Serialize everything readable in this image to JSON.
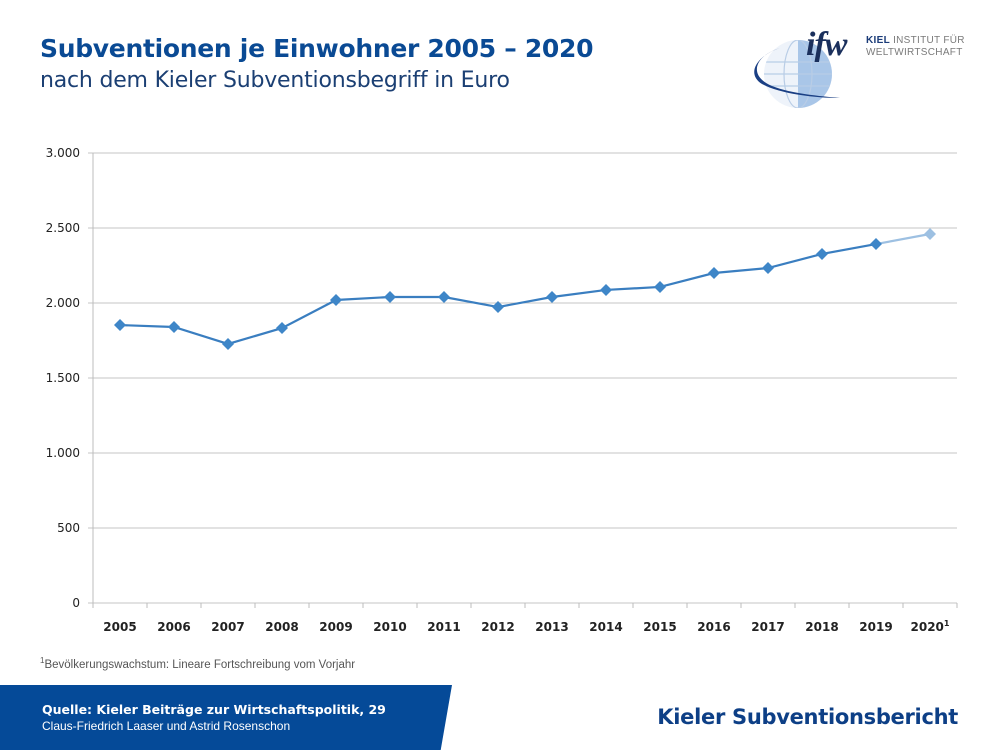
{
  "header": {
    "title": "Subventionen je Einwohner 2005 – 2020",
    "subtitle": "nach dem Kieler Subventionsbegriff in Euro"
  },
  "logo": {
    "mark": "ifw",
    "line1_bold": "KIEL",
    "line1_rest": " INSTITUT FÜR",
    "line2": "WELTWIRTSCHAFT",
    "icon": "globe-icon"
  },
  "colors": {
    "title": "#0a4a94",
    "series": "#3e86c8",
    "series_projected": "#9dc0e2",
    "footer_blue": "#054a98",
    "footer_gray": "#d3d3d3"
  },
  "chart_data": {
    "type": "line",
    "title": "Subventionen je Einwohner 2005 – 2020",
    "subtitle": "nach dem Kieler Subventionsbegriff in Euro",
    "xlabel": "",
    "ylabel": "",
    "categories": [
      "2005",
      "2006",
      "2007",
      "2008",
      "2009",
      "2010",
      "2011",
      "2012",
      "2013",
      "2014",
      "2015",
      "2016",
      "2017",
      "2018",
      "2019",
      "2020¹"
    ],
    "series": [
      {
        "name": "Subventionen je Einwohner (Euro)",
        "values": [
          1853,
          1840,
          1727,
          1833,
          2020,
          2040,
          2040,
          1973,
          2040,
          2087,
          2107,
          2200,
          2233,
          2327,
          2393,
          2460
        ],
        "projected_from_index": 15
      }
    ],
    "ylim": [
      0,
      3000
    ],
    "yticks": [
      0,
      500,
      1000,
      1500,
      2000,
      2500,
      3000
    ],
    "ytick_labels": [
      "0",
      "500",
      "1.000",
      "1.500",
      "2.000",
      "2.500",
      "3.000"
    ],
    "grid": true,
    "legend": "none",
    "marker": "diamond"
  },
  "footnote": {
    "marker": "1",
    "text": "Bevölkerungswachstum: Lineare Fortschreibung vom Vorjahr"
  },
  "footer": {
    "source_line": "Quelle: Kieler Beiträge zur Wirtschaftspolitik, 29",
    "authors_line": "Claus-Friedrich Laaser und Astrid Rosenschon",
    "brand": "Kieler Subventionsbericht"
  }
}
